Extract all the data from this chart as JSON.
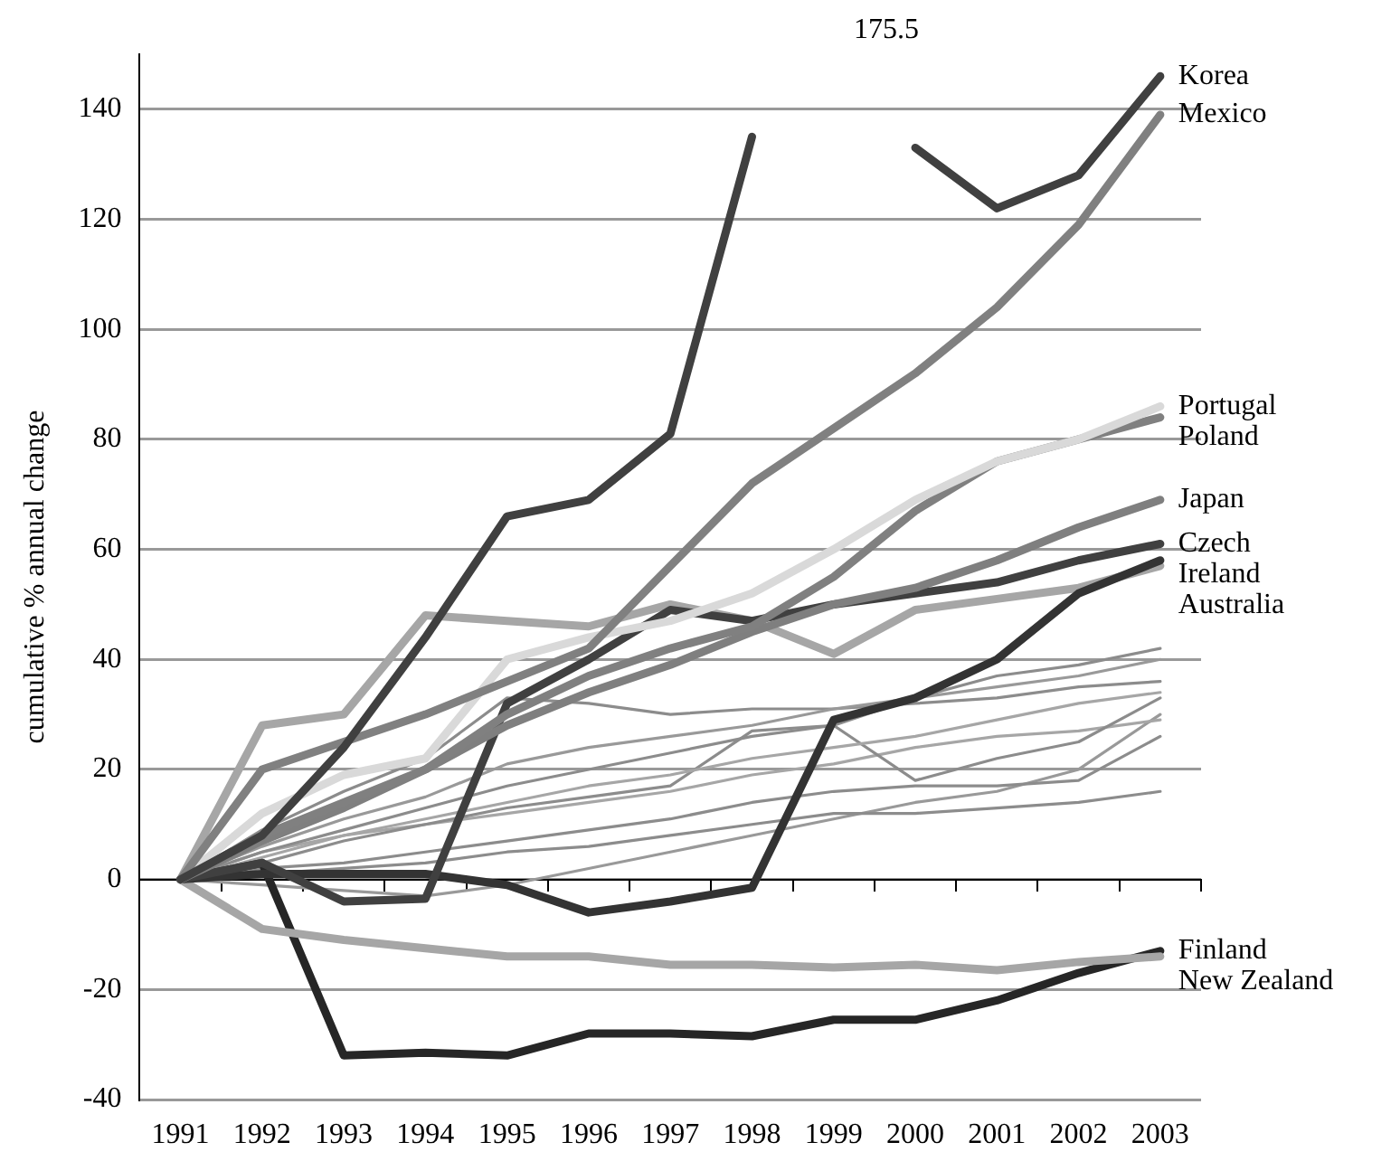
{
  "chart_data": {
    "type": "line",
    "ylabel": "cumulative % annual change",
    "categories": [
      "1991",
      "1992",
      "1993",
      "1994",
      "1995",
      "1996",
      "1997",
      "1998",
      "1999",
      "2000",
      "2001",
      "2002",
      "2003"
    ],
    "ylim": [
      -40,
      150
    ],
    "yticks": [
      -40,
      -20,
      0,
      20,
      40,
      60,
      80,
      100,
      120,
      140
    ],
    "grid": "y",
    "legend": false,
    "marker": "none",
    "line_style": "solid",
    "annotations": [
      "175.5"
    ],
    "series": [
      {
        "color": "#8c8c8c",
        "values": [
          0,
          5,
          9,
          13,
          17,
          20,
          23,
          26,
          28,
          33,
          37,
          39,
          42
        ]
      },
      {
        "color": "#999999",
        "values": [
          0,
          6,
          11,
          15,
          21,
          24,
          26,
          28,
          31,
          33,
          35,
          37,
          40
        ]
      },
      {
        "color": "#8c8c8c",
        "values": [
          0,
          9,
          16,
          22,
          33,
          32,
          30,
          31,
          31,
          32,
          33,
          35,
          36
        ]
      },
      {
        "color": "#a6a6a6",
        "values": [
          0,
          4,
          8,
          11,
          14,
          17,
          19,
          22,
          24,
          26,
          29,
          32,
          34
        ]
      },
      {
        "color": "#8c8c8c",
        "values": [
          0,
          3,
          7,
          10,
          13,
          15,
          17,
          27,
          28,
          18,
          22,
          25,
          33
        ]
      },
      {
        "color": "#a6a6a6",
        "values": [
          0,
          5,
          8,
          10,
          12,
          14,
          16,
          19,
          21,
          24,
          26,
          27,
          29
        ]
      },
      {
        "color": "#8c8c8c",
        "values": [
          0,
          2,
          3,
          5,
          7,
          9,
          11,
          14,
          16,
          17,
          17,
          18,
          26
        ]
      },
      {
        "color": "#8c8c8c",
        "values": [
          0,
          1,
          2,
          3,
          5,
          6,
          8,
          10,
          12,
          12,
          13,
          14,
          16
        ]
      },
      {
        "color": "#999999",
        "values": [
          0,
          -1,
          -2,
          -3,
          -1,
          2,
          5,
          8,
          11,
          14,
          16,
          20,
          30
        ]
      },
      {
        "name": "Korea",
        "color": "#404040",
        "values": [
          0,
          8,
          24,
          44,
          66,
          69,
          81,
          135,
          null,
          133,
          122,
          128,
          146
        ]
      },
      {
        "name": "Mexico",
        "color": "#808080",
        "values": [
          0,
          20,
          25,
          30,
          36,
          42,
          57,
          72,
          82,
          92,
          104,
          119,
          139
        ]
      },
      {
        "name": "Portugal",
        "color": "#d9d9d9",
        "values": [
          0,
          12,
          19,
          22,
          40,
          44,
          47,
          52,
          60,
          69,
          76,
          80,
          86
        ]
      },
      {
        "name": "Poland",
        "color": "#808080",
        "values": [
          0,
          8,
          14,
          20,
          30,
          37,
          42,
          46,
          55,
          67,
          76,
          80,
          84
        ]
      },
      {
        "name": "Japan",
        "color": "#7f7f7f",
        "values": [
          0,
          7,
          13,
          20,
          28,
          34,
          39,
          45,
          50,
          53,
          58,
          64,
          69
        ]
      },
      {
        "name": "Czech",
        "color": "#404040",
        "values": [
          0,
          3,
          -4,
          -3.5,
          32,
          40,
          49,
          47,
          50,
          52,
          54,
          58,
          61
        ]
      },
      {
        "name": "Ireland",
        "color": "#333333",
        "values": [
          0,
          1,
          1,
          1,
          -1,
          -6,
          -4,
          -1.5,
          29,
          33,
          40,
          52,
          58
        ]
      },
      {
        "name": "Australia",
        "color": "#a6a6a6",
        "values": [
          0,
          28,
          30,
          48,
          47,
          46,
          50,
          47,
          41,
          49,
          51,
          53,
          57
        ]
      },
      {
        "name": "New Zealand",
        "color": "#a6a6a6",
        "values": [
          0,
          -9,
          -11,
          -12.5,
          -14,
          -14,
          -15.5,
          -15.5,
          -16,
          -15.5,
          -16.5,
          -15,
          -14
        ]
      },
      {
        "name": "Finland",
        "color": "#262626",
        "values": [
          0,
          3,
          -32,
          -31.5,
          -32,
          -28,
          -28,
          -28.5,
          -25.5,
          -25.5,
          -22,
          -17,
          -13
        ]
      }
    ]
  }
}
